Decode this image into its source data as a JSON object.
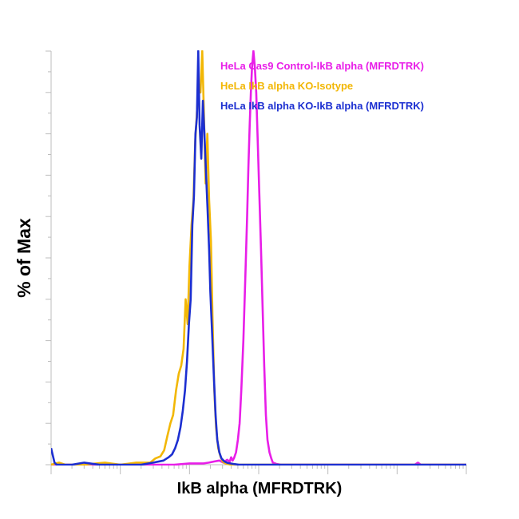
{
  "chart_data": {
    "type": "line",
    "xlabel": "IkB alpha (MFRDTRK)",
    "ylabel": "% of Max",
    "x_scale": "log",
    "x_tick_labels": [],
    "y_tick_labels": [],
    "xlim": [
      10,
      10000000
    ],
    "ylim": [
      0,
      100
    ],
    "grid": false,
    "legend_position": "top-right",
    "series": [
      {
        "name": "HeLa Cas9 Control-IkB alpha (MFRDTRK)",
        "color": "#e81ee8",
        "x": [
          10,
          600,
          1000,
          1600,
          1900,
          2300,
          2700,
          3100,
          3500,
          3800,
          4000,
          4200,
          4400,
          4700,
          5000,
          5300,
          5600,
          6000,
          6400,
          6800,
          7100,
          7400,
          7700,
          8000,
          8400,
          8800,
          9200,
          9600,
          10200,
          10800,
          11400,
          12000,
          12700,
          13400,
          14300,
          15200,
          16000,
          18000,
          21000,
          30000,
          100000,
          1000000,
          1800000,
          2000000,
          2200000,
          10000000
        ],
        "y": [
          0,
          0,
          0.3,
          0.3,
          0.5,
          0.8,
          1,
          0.5,
          1.2,
          0.7,
          1.8,
          1,
          1.6,
          3,
          6,
          10,
          18,
          30,
          45,
          60,
          72,
          82,
          90,
          96,
          100,
          96,
          90,
          80,
          66,
          52,
          38,
          24,
          12,
          6,
          3,
          1.5,
          0.5,
          0.2,
          0,
          0,
          0,
          0,
          0,
          0.5,
          0,
          0
        ]
      },
      {
        "name": "HeLa IkB alpha KO-Isotype",
        "color": "#f2b705",
        "x": [
          10,
          13,
          16,
          20,
          30,
          60,
          100,
          170,
          270,
          320,
          380,
          430,
          480,
          530,
          580,
          640,
          700,
          760,
          820,
          880,
          940,
          1000,
          1070,
          1140,
          1210,
          1290,
          1360,
          1440,
          1530,
          1620,
          1710,
          1810,
          1920,
          2040,
          2150,
          2280,
          2420,
          2600,
          2800,
          3000,
          3300,
          4000,
          10000000
        ],
        "y": [
          0,
          0.5,
          0,
          0,
          0,
          0.5,
          0,
          0.5,
          0.5,
          1.5,
          2,
          3.5,
          7,
          10,
          12,
          18,
          22,
          24,
          28,
          40,
          34,
          48,
          58,
          64,
          78,
          86,
          92,
          90,
          100,
          84,
          68,
          80,
          64,
          54,
          36,
          18,
          9,
          4,
          2,
          0.8,
          0.3,
          0,
          0
        ]
      },
      {
        "name": "HeLa IkB alpha KO-IkB alpha (MFRDTRK)",
        "color": "#1c2fd1",
        "x": [
          10,
          10.5,
          11.2,
          12,
          13,
          20,
          30,
          50,
          100,
          200,
          300,
          420,
          500,
          560,
          620,
          680,
          740,
          800,
          860,
          920,
          980,
          1040,
          1100,
          1160,
          1220,
          1280,
          1340,
          1400,
          1480,
          1560,
          1640,
          1720,
          1820,
          1920,
          2000,
          2120,
          2240,
          2380,
          2520,
          2700,
          2900,
          3200,
          3600,
          4300,
          5200,
          10000000
        ],
        "y": [
          4,
          2.5,
          0.5,
          0,
          0,
          0,
          0.5,
          0,
          0,
          0,
          0.5,
          1,
          1.8,
          2.5,
          4,
          6,
          9,
          13,
          18,
          25,
          34,
          40,
          58,
          65,
          80,
          84,
          100,
          82,
          74,
          88,
          80,
          72,
          62,
          52,
          42,
          32,
          22,
          12,
          6,
          3,
          1.5,
          0.8,
          0.4,
          0.2,
          0,
          0
        ]
      }
    ]
  }
}
